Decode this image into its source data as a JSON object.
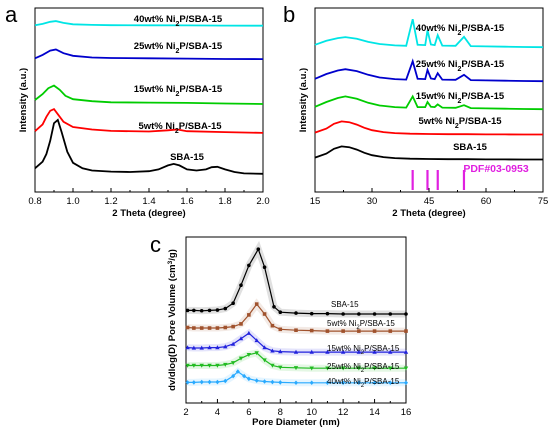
{
  "chart_data": [
    {
      "panel": "a",
      "type": "line",
      "xlabel": "2 Theta (degree)",
      "ylabel": "Intensity (a.u.)",
      "xlim": [
        0.8,
        2.0
      ],
      "xticks": [
        "0.8",
        "1.0",
        "1.2",
        "1.4",
        "1.6",
        "1.8",
        "2.0"
      ],
      "series": [
        {
          "name": "SBA-15",
          "color": "#000000",
          "x": [
            0.8,
            0.84,
            0.86,
            0.88,
            0.9,
            0.92,
            0.94,
            0.97,
            1.0,
            1.05,
            1.1,
            1.2,
            1.3,
            1.4,
            1.45,
            1.5,
            1.53,
            1.56,
            1.6,
            1.65,
            1.7,
            1.73,
            1.76,
            1.8,
            1.85,
            1.9,
            2.0
          ],
          "y": [
            0.35,
            0.65,
            1.0,
            1.6,
            2.4,
            2.55,
            2.0,
            1.1,
            0.6,
            0.35,
            0.25,
            0.2,
            0.18,
            0.22,
            0.3,
            0.48,
            0.55,
            0.48,
            0.3,
            0.25,
            0.3,
            0.4,
            0.42,
            0.3,
            0.18,
            0.12,
            0.1
          ]
        },
        {
          "name": "5wt% Ni2P/SBA-15",
          "color": "#ff0000",
          "x": [
            0.8,
            0.84,
            0.86,
            0.88,
            0.9,
            0.92,
            0.95,
            1.0,
            1.1,
            1.2,
            1.4,
            1.5,
            1.55,
            1.6,
            1.8,
            2.0
          ],
          "y": [
            0.4,
            0.8,
            1.25,
            1.6,
            1.7,
            1.4,
            0.95,
            0.65,
            0.5,
            0.42,
            0.38,
            0.45,
            0.5,
            0.4,
            0.35,
            0.3
          ]
        },
        {
          "name": "15wt% Ni2P/SBA-15",
          "color": "#00cc00",
          "x": [
            0.8,
            0.84,
            0.87,
            0.9,
            0.93,
            0.96,
            1.0,
            1.1,
            1.2,
            1.4,
            1.6,
            1.8,
            2.0
          ],
          "y": [
            0.35,
            0.7,
            1.05,
            1.2,
            0.95,
            0.6,
            0.4,
            0.28,
            0.22,
            0.2,
            0.18,
            0.15,
            0.12
          ]
        },
        {
          "name": "25wt% Ni2P/SBA-15",
          "color": "#0000cc",
          "x": [
            0.8,
            0.84,
            0.88,
            0.91,
            0.95,
            1.0,
            1.1,
            1.2,
            1.4,
            1.6,
            1.8,
            2.0
          ],
          "y": [
            0.1,
            0.3,
            0.55,
            0.62,
            0.4,
            0.25,
            0.15,
            0.12,
            0.1,
            0.08,
            0.06,
            0.05
          ]
        },
        {
          "name": "40wt% Ni2P/SBA-15",
          "color": "#00e5e5",
          "x": [
            0.8,
            0.84,
            0.88,
            0.91,
            0.95,
            1.0,
            1.1,
            1.2,
            1.4,
            1.6,
            1.8,
            2.0
          ],
          "y": [
            0.05,
            0.15,
            0.3,
            0.35,
            0.22,
            0.12,
            0.08,
            0.06,
            0.05,
            0.04,
            0.03,
            0.02
          ]
        }
      ]
    },
    {
      "panel": "b",
      "type": "line",
      "xlabel": "2 Theta (degree)",
      "ylabel": "Intensity (a.u.)",
      "xlim": [
        15,
        75
      ],
      "xticks": [
        "15",
        "30",
        "45",
        "60",
        "75"
      ],
      "reference": {
        "name": "PDF#03-0953",
        "color": "#e020e0",
        "peaks": [
          40.7,
          44.6,
          47.3,
          54.2
        ]
      },
      "series": [
        {
          "name": "SBA-15",
          "color": "#000000",
          "x": [
            15,
            18,
            20,
            22,
            24,
            26,
            28,
            30,
            33,
            36,
            40,
            45,
            50,
            55,
            60,
            65,
            70,
            75
          ],
          "y": [
            0.15,
            0.4,
            0.7,
            0.85,
            0.8,
            0.65,
            0.45,
            0.3,
            0.18,
            0.12,
            0.08,
            0.06,
            0.05,
            0.05,
            0.04,
            0.04,
            0.03,
            0.03
          ]
        },
        {
          "name": "5wt% Ni2P/SBA-15",
          "color": "#ff0000",
          "x": [
            15,
            18,
            20,
            22,
            24,
            26,
            28,
            30,
            33,
            36,
            40,
            45,
            50,
            55,
            60,
            65,
            70,
            75
          ],
          "y": [
            0.15,
            0.4,
            0.7,
            0.85,
            0.8,
            0.65,
            0.45,
            0.3,
            0.18,
            0.12,
            0.08,
            0.06,
            0.05,
            0.05,
            0.04,
            0.04,
            0.03,
            0.03
          ]
        },
        {
          "name": "15wt% Ni2P/SBA-15",
          "color": "#00cc00",
          "x": [
            15,
            18,
            21,
            23,
            26,
            29,
            32,
            36,
            39,
            40.7,
            42,
            44,
            44.6,
            45.5,
            46.5,
            47.3,
            48.5,
            52,
            54.2,
            56,
            60,
            65,
            70,
            75
          ],
          "y": [
            0.2,
            0.5,
            0.75,
            0.85,
            0.7,
            0.45,
            0.28,
            0.18,
            0.15,
            0.85,
            0.18,
            0.18,
            0.5,
            0.2,
            0.18,
            0.35,
            0.15,
            0.14,
            0.3,
            0.12,
            0.1,
            0.08,
            0.06,
            0.05
          ]
        },
        {
          "name": "25wt% Ni2P/SBA-15",
          "color": "#0000cc",
          "x": [
            15,
            18,
            21,
            23,
            26,
            29,
            32,
            36,
            39,
            40.7,
            42,
            44,
            44.6,
            45.5,
            46.5,
            47.3,
            48.5,
            52,
            54.2,
            56,
            60,
            65,
            70,
            75
          ],
          "y": [
            0.2,
            0.5,
            0.72,
            0.8,
            0.68,
            0.45,
            0.28,
            0.18,
            0.15,
            1.3,
            0.2,
            0.18,
            0.75,
            0.22,
            0.18,
            0.55,
            0.15,
            0.14,
            0.45,
            0.12,
            0.1,
            0.08,
            0.06,
            0.05
          ]
        },
        {
          "name": "40wt% Ni2P/SBA-15",
          "color": "#00e5e5",
          "x": [
            15,
            18,
            21,
            23,
            26,
            29,
            32,
            36,
            39,
            40.7,
            42,
            44,
            44.6,
            45.5,
            46.5,
            47.3,
            48.5,
            52,
            54.2,
            56,
            60,
            65,
            70,
            75
          ],
          "y": [
            0.2,
            0.45,
            0.62,
            0.68,
            0.58,
            0.38,
            0.25,
            0.16,
            0.14,
            1.8,
            0.2,
            0.18,
            1.1,
            0.22,
            0.18,
            0.8,
            0.15,
            0.14,
            0.7,
            0.12,
            0.1,
            0.08,
            0.06,
            0.05
          ]
        }
      ]
    },
    {
      "panel": "c",
      "type": "line",
      "xlabel": "Pore Diameter (nm)",
      "ylabel": "dv/dlog(D) Pore Volume (cm3/g)",
      "xlim": [
        2,
        16
      ],
      "xticks": [
        "2",
        "4",
        "6",
        "8",
        "10",
        "12",
        "14",
        "16"
      ],
      "series": [
        {
          "name": "SBA-15",
          "color": "#000000",
          "marker": "circle",
          "x": [
            2.1,
            2.5,
            3.0,
            3.5,
            4.0,
            4.5,
            5.0,
            5.5,
            6.0,
            6.6,
            7.0,
            7.6,
            8.0,
            9.0,
            10.0,
            11.0,
            12.0,
            13.0,
            14.0,
            15.0,
            16.0
          ],
          "y": [
            0.2,
            0.2,
            0.18,
            0.2,
            0.22,
            0.3,
            0.6,
            1.6,
            2.7,
            3.6,
            2.6,
            0.4,
            0.1,
            0.05,
            0.02,
            0.02,
            0.0,
            0.0,
            0.0,
            0.0,
            0.0
          ]
        },
        {
          "name": "5wt% Ni2P/SBA-15",
          "color": "#a0522d",
          "marker": "square",
          "x": [
            2.1,
            2.5,
            3.0,
            3.5,
            4.0,
            4.5,
            5.0,
            5.5,
            6.0,
            6.5,
            7.0,
            7.5,
            8.0,
            9.0,
            10.0,
            11.0,
            12.0,
            13.0,
            14.0,
            15.0,
            16.0
          ],
          "y": [
            0.25,
            0.22,
            0.22,
            0.22,
            0.22,
            0.25,
            0.3,
            0.45,
            0.95,
            1.55,
            1.0,
            0.35,
            0.15,
            0.1,
            0.08,
            0.05,
            0.05,
            0.05,
            0.05,
            0.05,
            0.05
          ]
        },
        {
          "name": "15wt% Ni2P/SBA-15",
          "color": "#2222dd",
          "marker": "triangle-up",
          "x": [
            2.1,
            2.5,
            3.0,
            3.5,
            4.0,
            4.5,
            5.0,
            5.5,
            6.0,
            6.5,
            7.0,
            7.5,
            8.0,
            9.0,
            10.0,
            11.0,
            12.0,
            13.0,
            14.0,
            15.0,
            16.0
          ],
          "y": [
            0.3,
            0.28,
            0.28,
            0.3,
            0.3,
            0.35,
            0.5,
            0.8,
            1.1,
            0.7,
            0.3,
            0.12,
            0.08,
            0.05,
            0.05,
            0.05,
            0.05,
            0.05,
            0.05,
            0.05,
            0.05
          ]
        },
        {
          "name": "25wt% Ni2P/SBA-15",
          "color": "#22bb22",
          "marker": "triangle-down",
          "x": [
            2.1,
            2.5,
            3.0,
            3.5,
            4.0,
            4.5,
            5.0,
            5.5,
            6.0,
            6.5,
            7.0,
            7.5,
            8.0,
            9.0,
            10.0,
            11.0,
            12.0,
            13.0,
            14.0,
            15.0,
            16.0
          ],
          "y": [
            0.25,
            0.25,
            0.25,
            0.25,
            0.25,
            0.3,
            0.4,
            0.65,
            0.85,
            0.95,
            0.55,
            0.25,
            0.15,
            0.12,
            0.1,
            0.1,
            0.1,
            0.1,
            0.1,
            0.1,
            0.1
          ]
        },
        {
          "name": "40wt% Ni2P/SBA-15",
          "color": "#29aaff",
          "marker": "diamond",
          "x": [
            2.1,
            2.5,
            3.0,
            3.5,
            4.0,
            4.5,
            5.0,
            5.3,
            5.7,
            6.0,
            6.5,
            7.0,
            7.5,
            8.0,
            9.0,
            10.0,
            11.0,
            12.0,
            13.0,
            14.0,
            15.0,
            16.0
          ],
          "y": [
            0.2,
            0.2,
            0.22,
            0.22,
            0.22,
            0.28,
            0.55,
            0.8,
            0.55,
            0.4,
            0.3,
            0.25,
            0.22,
            0.2,
            0.18,
            0.18,
            0.18,
            0.18,
            0.18,
            0.18,
            0.18,
            0.18
          ]
        }
      ]
    }
  ]
}
